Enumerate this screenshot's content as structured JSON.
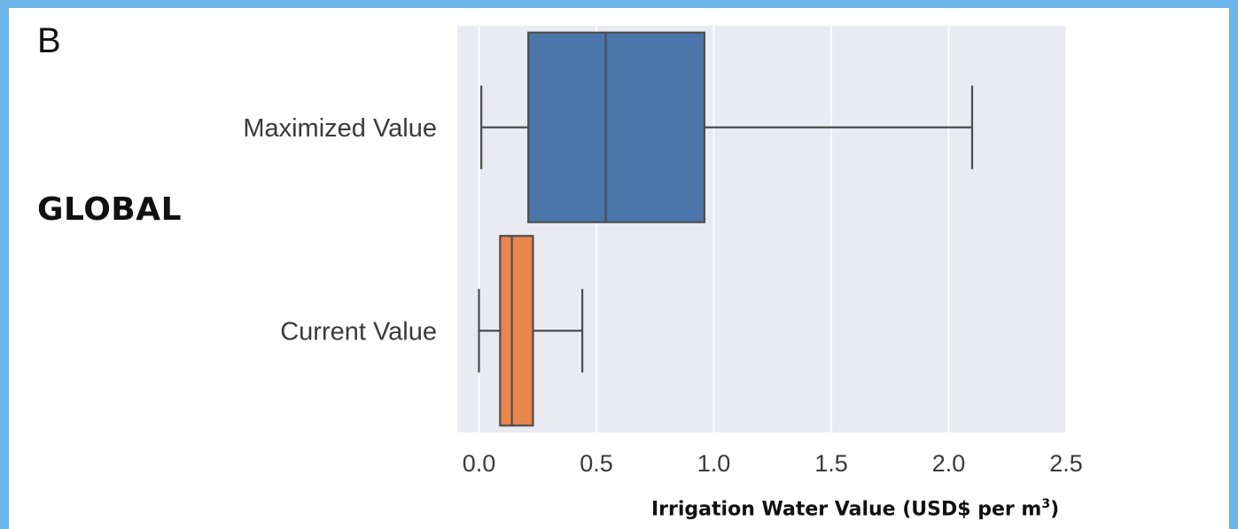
{
  "panel_label": "B",
  "region_label": "GLOBAL",
  "chart_data": {
    "type": "boxplot",
    "orientation": "horizontal",
    "categories": [
      "Maximized Value",
      "Current Value"
    ],
    "boxes": [
      {
        "name": "Maximized Value",
        "whisker_low": 0.01,
        "q1": 0.21,
        "median": 0.54,
        "q3": 0.96,
        "whisker_high": 2.1,
        "color": "#4a76aa"
      },
      {
        "name": "Current Value",
        "whisker_low": 0.0,
        "q1": 0.09,
        "median": 0.14,
        "q3": 0.23,
        "whisker_high": 0.44,
        "color": "#e8864e"
      }
    ],
    "xlabel_main": "Irrigation Water Value (USD$ per m",
    "xlabel_sup": "3",
    "xlabel_close": ")",
    "xlim": [
      -0.09,
      2.5
    ],
    "xticks": [
      0.0,
      0.5,
      1.0,
      1.5,
      2.0,
      2.5
    ],
    "xtick_labels": [
      "0.0",
      "0.5",
      "1.0",
      "1.5",
      "2.0",
      "2.5"
    ],
    "grid": true,
    "plot_background": "#eaeaf2",
    "grid_color": "#ffffff",
    "line_color": "#4d4d4d"
  }
}
